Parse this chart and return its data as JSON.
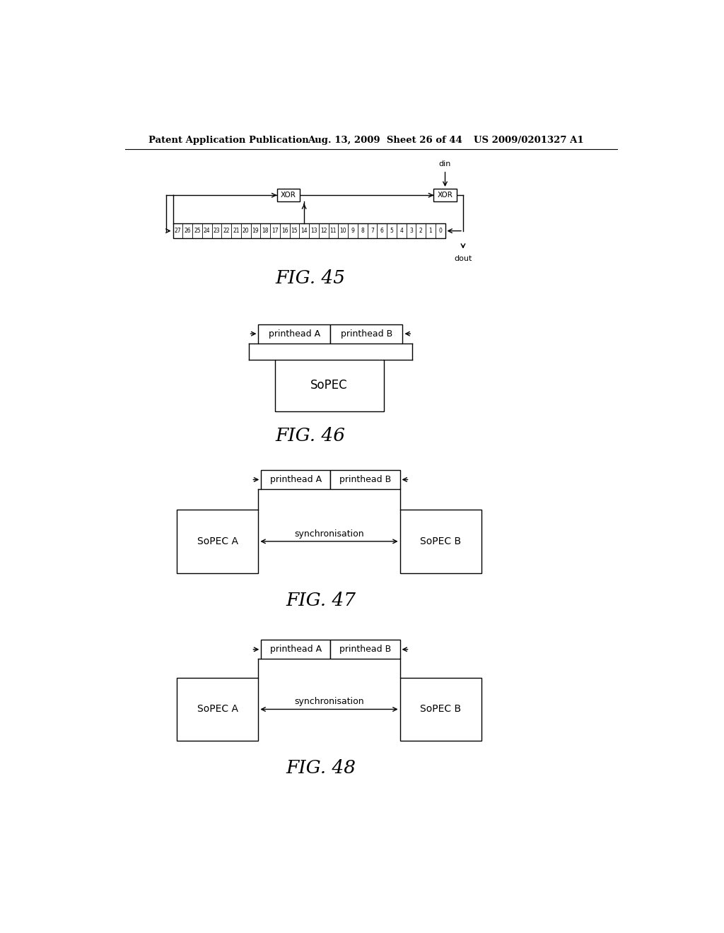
{
  "title_left": "Patent Application Publication",
  "title_mid": "Aug. 13, 2009  Sheet 26 of 44",
  "title_right": "US 2009/0201327 A1",
  "background": "#ffffff",
  "fig45_caption": "FIG. 45",
  "fig46_caption": "FIG. 46",
  "fig47_caption": "FIG. 47",
  "fig48_caption": "FIG. 48",
  "register_bits": [
    "27",
    "26",
    "25",
    "24",
    "23",
    "22",
    "21",
    "20",
    "19",
    "18",
    "17",
    "16",
    "15",
    "14",
    "13",
    "12",
    "11",
    "10",
    "9",
    "8",
    "7",
    "6",
    "5",
    "4",
    "3",
    "2",
    "1",
    "0"
  ]
}
